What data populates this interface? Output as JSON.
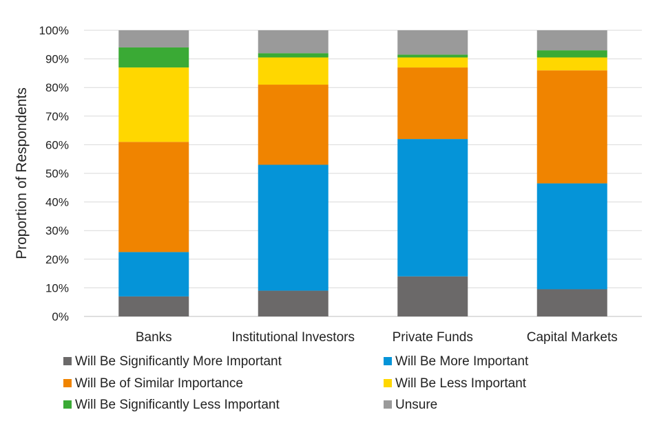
{
  "chart_data": {
    "type": "bar",
    "stacked": true,
    "categories": [
      "Banks",
      "Institutional Investors",
      "Private Funds",
      "Capital Markets"
    ],
    "series": [
      {
        "name": "Will Be Significantly More Important",
        "color": "#6b6969",
        "values": [
          7,
          9,
          14,
          9.5
        ]
      },
      {
        "name": "Will Be More Important",
        "color": "#0594d8",
        "values": [
          15.5,
          44,
          48,
          37
        ]
      },
      {
        "name": "Will Be of Similar Importance",
        "color": "#f08400",
        "values": [
          38.5,
          28,
          25,
          39.5
        ]
      },
      {
        "name": "Will Be Less Important",
        "color": "#ffd700",
        "values": [
          26,
          9.5,
          3.5,
          4.5
        ]
      },
      {
        "name": "Will Be Significantly Less Important",
        "color": "#3aaa35",
        "values": [
          7,
          1.5,
          1,
          2.5
        ]
      },
      {
        "name": "Unsure",
        "color": "#9a9a9a",
        "values": [
          6,
          8,
          8.5,
          7
        ]
      }
    ],
    "yticks": [
      "0%",
      "10%",
      "20%",
      "30%",
      "40%",
      "50%",
      "60%",
      "70%",
      "80%",
      "90%",
      "100%"
    ],
    "ylim": [
      0,
      100
    ],
    "ylabel": "Proportion of Respondents",
    "xlabel": "",
    "title": "",
    "grid": true,
    "legend_position": "bottom"
  }
}
